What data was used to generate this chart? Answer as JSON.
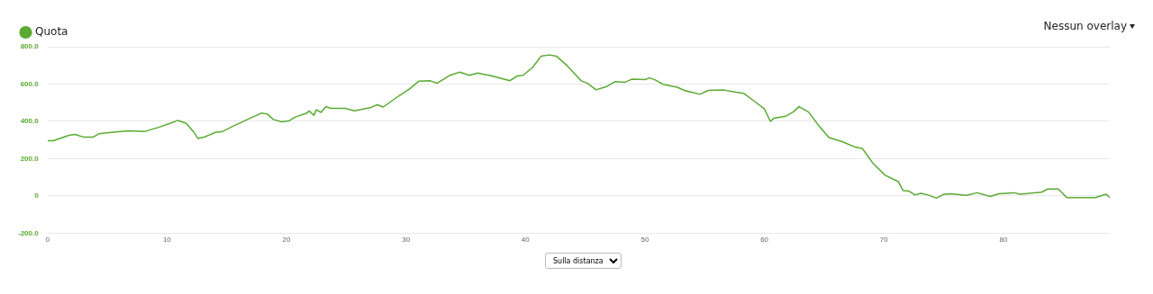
{
  "chart_data": {
    "type": "line",
    "x": [
      0,
      0.5,
      1.8,
      2.3,
      3.0,
      3.8,
      4.3,
      5.5,
      6.8,
      8.1,
      9.3,
      10.3,
      10.9,
      11.6,
      12.3,
      12.6,
      13.1,
      14.1,
      14.6,
      15.6,
      16.9,
      17.9,
      18.4,
      18.9,
      19.6,
      20.2,
      20.7,
      21.7,
      21.9,
      22.3,
      22.5,
      22.9,
      23.3,
      23.7,
      24.9,
      25.7,
      27.0,
      27.6,
      28.1,
      29.4,
      30.3,
      31.1,
      32.0,
      32.6,
      33.7,
      34.5,
      35.3,
      36.0,
      37.2,
      38.7,
      39.3,
      39.8,
      40.6,
      41.3,
      42.0,
      42.6,
      43.5,
      44.7,
      45.2,
      45.9,
      46.8,
      47.5,
      48.3,
      48.9,
      50.0,
      50.4,
      50.9,
      51.5,
      52.7,
      53.3,
      54.6,
      55.3,
      56.6,
      57.6,
      58.3,
      59.2,
      60.0,
      60.5,
      60.8,
      61.8,
      62.4,
      62.9,
      63.7,
      64.5,
      65.4,
      66.5,
      67.6,
      68.2,
      69.1,
      70.1,
      71.2,
      71.6,
      72.1,
      72.6,
      73.1,
      73.7,
      74.4,
      75.0,
      75.6,
      76.9,
      77.8,
      78.9,
      79.6,
      80.9,
      81.4,
      83.2,
      83.7,
      84.6,
      85.3,
      87.7,
      88.6,
      88.9
    ],
    "series": [
      {
        "name": "Quota",
        "color": "#5aaa32",
        "values": [
          296,
          296,
          325,
          330,
          316,
          315,
          333,
          342,
          349,
          345,
          368,
          390,
          405,
          390,
          338,
          308,
          315,
          342,
          344,
          376,
          415,
          444,
          439,
          410,
          397,
          402,
          422,
          444,
          456,
          432,
          462,
          448,
          479,
          470,
          470,
          456,
          473,
          489,
          477,
          536,
          574,
          616,
          618,
          604,
          647,
          664,
          647,
          659,
          643,
          618,
          643,
          647,
          689,
          749,
          756,
          749,
          698,
          616,
          604,
          569,
          587,
          613,
          609,
          626,
          624,
          633,
          621,
          599,
          583,
          566,
          545,
          566,
          568,
          556,
          549,
          506,
          467,
          400,
          417,
          428,
          450,
          479,
          450,
          381,
          313,
          291,
          262,
          254,
          174,
          111,
          77,
          29,
          26,
          5,
          14,
          5,
          -12,
          9,
          12,
          3,
          17,
          -3,
          12,
          17,
          9,
          20,
          37,
          37,
          -9,
          -9,
          9,
          -9
        ]
      }
    ],
    "xlim": [
      0,
      88.9
    ],
    "xticks": [
      0,
      10,
      20,
      30,
      40,
      50,
      60,
      70,
      80
    ],
    "ylim": [
      -200,
      800
    ],
    "yticks": [
      {
        "value": -200,
        "label": "-200.0"
      },
      {
        "value": 0,
        "label": "0"
      },
      {
        "value": 200,
        "label": "200.0"
      },
      {
        "value": 400,
        "label": "400.0"
      },
      {
        "value": 600,
        "label": "600.0"
      },
      {
        "value": 800,
        "label": "800.0"
      }
    ],
    "grid": "y",
    "legend": "top left",
    "marker": "none",
    "line_style": "solid",
    "annotations": [
      "Nessun overlay",
      "Sulla distanza"
    ]
  }
}
